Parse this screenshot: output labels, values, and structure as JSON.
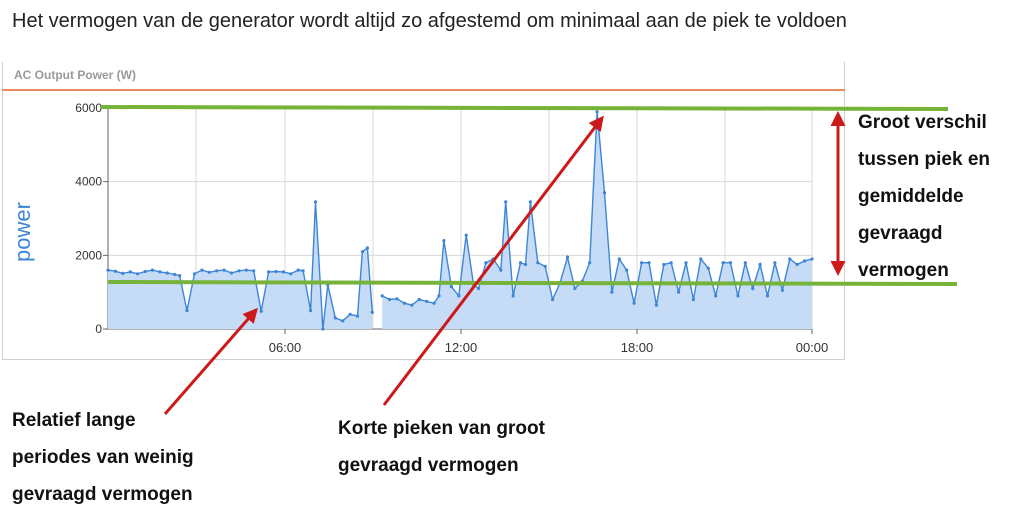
{
  "heading": "Het vermogen van de generator wordt altijd zo afgestemd om minimaal aan de piek te voldoen",
  "chart_data": {
    "type": "area",
    "title": "AC Output Power (W)",
    "ylabel": "power",
    "xlabel": "",
    "ylim": [
      0,
      6000
    ],
    "yticks": [
      "0",
      "2000",
      "4000",
      "6000"
    ],
    "xticks": [
      "06:00",
      "12:00",
      "18:00",
      "00:00"
    ],
    "grid": true,
    "series": [
      {
        "values": [
          [
            0.0,
            1600
          ],
          [
            0.3,
            1570
          ],
          [
            0.6,
            1510
          ],
          [
            0.9,
            1550
          ],
          [
            1.2,
            1500
          ],
          [
            1.5,
            1560
          ],
          [
            1.8,
            1600
          ],
          [
            2.1,
            1550
          ],
          [
            2.4,
            1520
          ],
          [
            2.7,
            1480
          ],
          [
            2.9,
            1450
          ],
          [
            3.2,
            500
          ],
          [
            3.5,
            1500
          ],
          [
            3.8,
            1600
          ],
          [
            4.1,
            1540
          ],
          [
            4.4,
            1580
          ],
          [
            4.7,
            1600
          ],
          [
            5.0,
            1520
          ],
          [
            5.3,
            1580
          ],
          [
            5.6,
            1600
          ],
          [
            5.9,
            1580
          ],
          [
            6.2,
            480
          ],
          [
            6.5,
            1550
          ],
          [
            6.8,
            1560
          ],
          [
            7.1,
            1550
          ],
          [
            7.4,
            1500
          ],
          [
            7.7,
            1600
          ],
          [
            7.9,
            1580
          ],
          [
            8.2,
            500
          ],
          [
            8.4,
            3450
          ],
          [
            8.7,
            0
          ],
          [
            8.9,
            1200
          ],
          [
            9.2,
            300
          ],
          [
            9.5,
            220
          ],
          [
            9.8,
            400
          ],
          [
            10.1,
            350
          ],
          [
            10.3,
            2100
          ],
          [
            10.5,
            2200
          ],
          [
            10.7,
            450
          ]
        ]
      },
      {
        "values": [
          [
            11.1,
            900
          ],
          [
            11.4,
            800
          ],
          [
            11.7,
            820
          ],
          [
            12.0,
            700
          ],
          [
            12.3,
            650
          ],
          [
            12.6,
            800
          ],
          [
            12.9,
            750
          ],
          [
            13.2,
            700
          ],
          [
            13.4,
            900
          ],
          [
            13.6,
            2400
          ],
          [
            13.9,
            1150
          ],
          [
            14.2,
            900
          ],
          [
            14.5,
            2550
          ],
          [
            14.8,
            1200
          ],
          [
            15.0,
            1100
          ],
          [
            15.3,
            1800
          ],
          [
            15.6,
            1900
          ],
          [
            15.9,
            1600
          ],
          [
            16.1,
            3450
          ],
          [
            16.4,
            900
          ],
          [
            16.7,
            1800
          ],
          [
            16.9,
            1750
          ],
          [
            17.1,
            3450
          ],
          [
            17.4,
            1800
          ],
          [
            17.7,
            1700
          ],
          [
            18.0,
            800
          ],
          [
            18.3,
            1250
          ],
          [
            18.6,
            1950
          ],
          [
            18.9,
            1100
          ],
          [
            19.2,
            1300
          ],
          [
            19.5,
            1800
          ],
          [
            19.8,
            5900
          ],
          [
            20.1,
            3700
          ],
          [
            20.4,
            1000
          ],
          [
            20.7,
            1900
          ],
          [
            21.0,
            1600
          ],
          [
            21.3,
            700
          ],
          [
            21.6,
            1800
          ],
          [
            21.9,
            1800
          ],
          [
            22.2,
            650
          ],
          [
            22.5,
            1750
          ],
          [
            22.8,
            1800
          ],
          [
            23.1,
            1000
          ],
          [
            23.4,
            1800
          ],
          [
            23.7,
            800
          ],
          [
            24.0,
            1900
          ],
          [
            24.3,
            1650
          ],
          [
            24.6,
            900
          ],
          [
            24.9,
            1800
          ],
          [
            25.2,
            1800
          ],
          [
            25.5,
            900
          ],
          [
            25.8,
            1800
          ],
          [
            26.1,
            1100
          ],
          [
            26.4,
            1750
          ],
          [
            26.7,
            900
          ],
          [
            27.0,
            1800
          ],
          [
            27.3,
            1050
          ],
          [
            27.6,
            1900
          ],
          [
            27.9,
            1750
          ],
          [
            28.2,
            1850
          ],
          [
            28.5,
            1900
          ]
        ]
      }
    ],
    "reference_lines": [
      6000,
      1250
    ],
    "colors": {
      "series_line": "#3d85d6",
      "series_fill": "#c6dcf6",
      "axis_text": "#333333",
      "ylabel": "#3d85d6",
      "grid": "#d8d8d8",
      "ref_line": "#76b33a",
      "arrow": "#cc1a1a"
    }
  },
  "annotations": {
    "right": [
      "Groot verschil",
      "tussen piek en",
      "gemiddelde",
      "gevraagd",
      "vermogen"
    ],
    "left": [
      "Relatief lange",
      "periodes van weinig",
      "gevraagd vermogen"
    ],
    "middle": [
      "Korte pieken van groot",
      "gevraagd vermogen"
    ]
  }
}
